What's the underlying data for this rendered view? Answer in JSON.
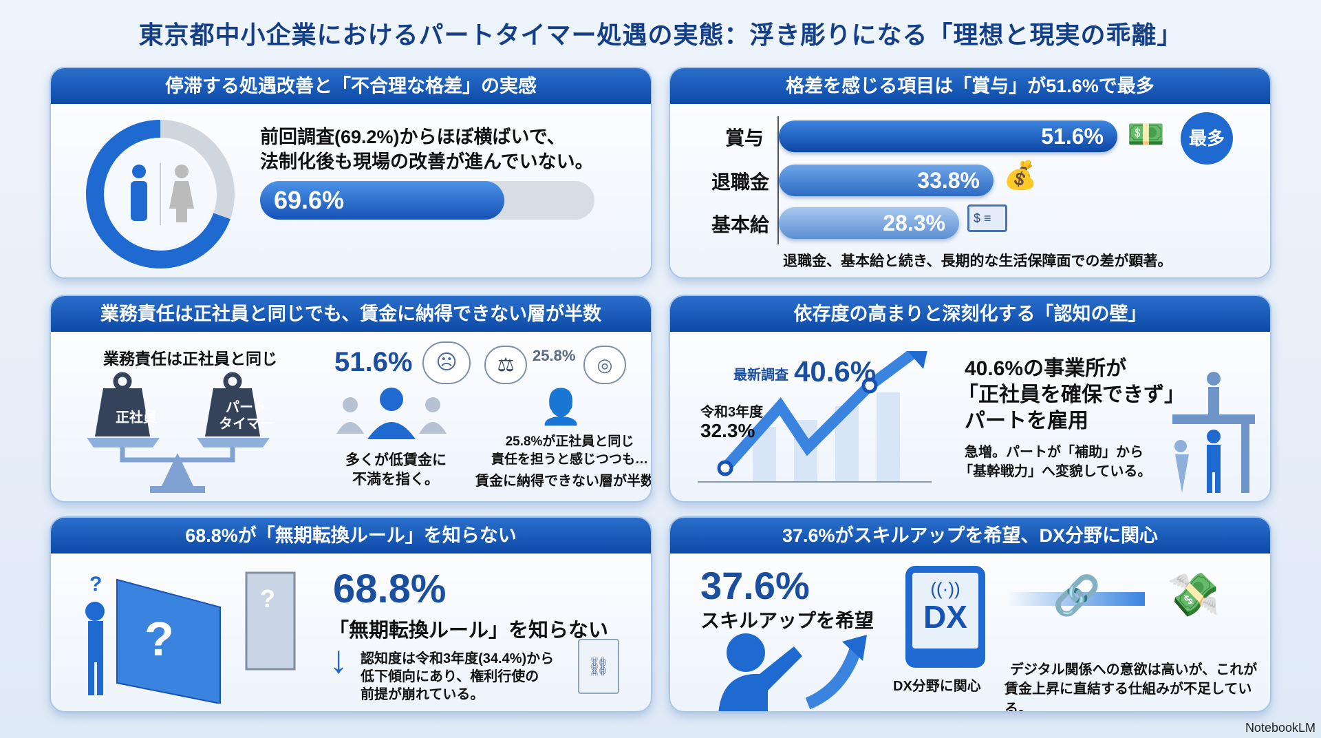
{
  "title": "東京都中小企業におけるパートタイマー処遇の実態：浮き彫りになる「理想と現実の乖離」",
  "p1": {
    "header": "停滞する処遇改善と「不合理な格差」の実感",
    "text1": "前回調査(69.2%)からほぼ横ばいで、",
    "text2": "法制化後も現場の改善が進んでいない。",
    "value_label": "69.6%",
    "value": 69.6
  },
  "p2": {
    "header": "格差を感じる項目は「賞与」が51.6%で最多",
    "items": [
      {
        "label": "賞与",
        "value_label": "51.6%",
        "value": 51.6,
        "icon": "money-coins-icon"
      },
      {
        "label": "退職金",
        "value_label": "33.8%",
        "value": 33.8,
        "icon": "money-bag-hand-icon"
      },
      {
        "label": "基本給",
        "value_label": "28.3%",
        "value": 28.3,
        "icon": "paycheck-icon"
      }
    ],
    "badge": "最多",
    "note": "退職金、基本給と続き、長期的な生活保障面での差が顕著。"
  },
  "p3": {
    "header": "業務責任は正社員と同じでも、賃金に納得できない層が半数",
    "scale_title": "業務責任は正社員と同じ",
    "weight_left": "正社員",
    "weight_right": "パート\nタイマー",
    "stat1": "51.6%",
    "stat1_text1": "多くが低賃金に",
    "stat1_text2": "不満を指く。",
    "stat2": "25.8%",
    "stat2_text1": "25.8%が正社員と同じ",
    "stat2_text2": "責任を担うと感じつつも…",
    "stat2_text3": "賃金に納得できない層が半数"
  },
  "p4": {
    "header": "依存度の高まりと深刻化する「認知の壁」",
    "latest_label": "最新調査",
    "latest_value": "40.6%",
    "prev_label": "令和3年度",
    "prev_value": "32.3%",
    "head1": "40.6%の事業所が",
    "head2": "「正社員を確保できず」",
    "head3": "パートを雇用",
    "sub1": "急増。パートが「補助」から",
    "sub2": "「基幹戦力」へ変貌している。"
  },
  "p5": {
    "header": "68.8%が「無期転換ルール」を知らない",
    "value": "68.8%",
    "text": "「無期転換ルール」を知らない",
    "sub1": "認知度は令和3年度(34.4%)から",
    "sub2": "低下傾向にあり、権利行使の",
    "sub3": "前提が崩れている。"
  },
  "p6": {
    "header": "37.6%がスキルアップを希望、DX分野に関心",
    "value": "37.6%",
    "text": "スキルアップを希望",
    "dx": "DX",
    "dx_label": "DX分野に関心",
    "sub1": "デジタル関係への意欲は高いが、これが",
    "sub2": "賃金上昇に直結する仕組みが不足している。"
  },
  "footer": "NotebookLM",
  "colors": {
    "accent": "#0d4aa8",
    "text_blue": "#1a4f9f"
  }
}
